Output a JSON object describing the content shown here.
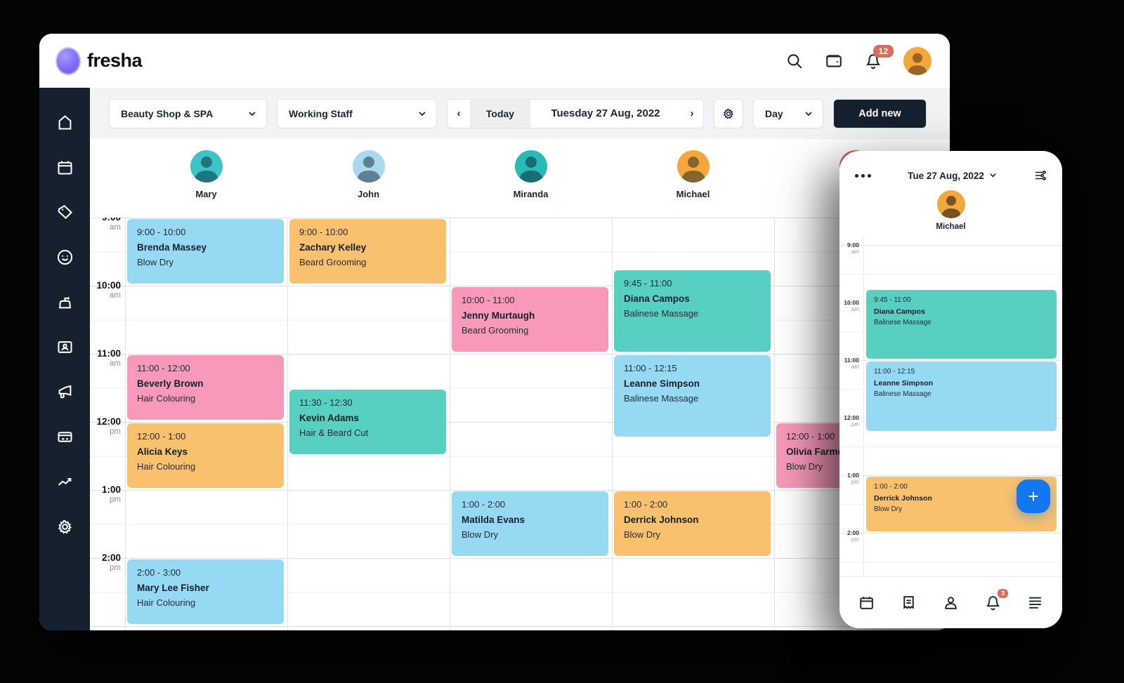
{
  "brand": {
    "logo_text": "fresha"
  },
  "header": {
    "icons": [
      "search-icon",
      "wallet-icon",
      "bell-icon",
      "user-avatar"
    ],
    "notification_count": "12"
  },
  "sidebar": {
    "icons": [
      "home",
      "calendar",
      "tag",
      "smiley",
      "products",
      "clients",
      "marketing",
      "card",
      "analytics",
      "settings"
    ]
  },
  "toolbar": {
    "location_selector": "Beauty Shop & SPA",
    "staff_filter": "Working Staff",
    "today_label": "Today",
    "date_label": "Tuesday 27 Aug, 2022",
    "view_selector": "Day",
    "add_new_label": "Add new"
  },
  "calendar": {
    "staff": [
      {
        "id": "mary",
        "name": "Mary",
        "avatar_bg": "#3ec3c9"
      },
      {
        "id": "john",
        "name": "John",
        "avatar_bg": "#a9d9f0"
      },
      {
        "id": "miranda",
        "name": "Miranda",
        "avatar_bg": "#29b9b6"
      },
      {
        "id": "michael",
        "name": "Michael",
        "avatar_bg": "#f3a73c"
      },
      {
        "id": "staff5",
        "name": "",
        "avatar_bg": "#e2574c"
      }
    ],
    "times": [
      {
        "hour": "9:00",
        "meridiem": "am"
      },
      {
        "hour": "10:00",
        "meridiem": "am"
      },
      {
        "hour": "11:00",
        "meridiem": "am"
      },
      {
        "hour": "12:00",
        "meridiem": "pm"
      },
      {
        "hour": "1:00",
        "meridiem": "pm"
      },
      {
        "hour": "2:00",
        "meridiem": "pm"
      }
    ],
    "palette": {
      "blue": "#95d9f3",
      "orange": "#f9c06e",
      "pink": "#f899ba",
      "teal": "#57d0c2"
    },
    "appointments": [
      {
        "staff": "mary",
        "time": "9:00 - 10:00",
        "client": "Brenda Massey",
        "service": "Blow Dry",
        "color": "blue"
      },
      {
        "staff": "mary",
        "time": "11:00 - 12:00",
        "client": "Beverly Brown",
        "service": "Hair Colouring",
        "color": "pink"
      },
      {
        "staff": "mary",
        "time": "12:00 - 1:00",
        "client": "Alicia Keys",
        "service": "Hair Colouring",
        "color": "orange"
      },
      {
        "staff": "mary",
        "time": "2:00 - 3:00",
        "client": "Mary Lee Fisher",
        "service": "Hair Colouring",
        "color": "blue"
      },
      {
        "staff": "john",
        "time": "9:00 - 10:00",
        "client": "Zachary Kelley",
        "service": "Beard Grooming",
        "color": "orange"
      },
      {
        "staff": "john",
        "time": "11:30 - 12:30",
        "client": "Kevin Adams",
        "service": "Hair & Beard Cut",
        "color": "teal"
      },
      {
        "staff": "miranda",
        "time": "10:00 - 11:00",
        "client": "Jenny Murtaugh",
        "service": "Beard Grooming",
        "color": "pink"
      },
      {
        "staff": "miranda",
        "time": "1:00 - 2:00",
        "client": "Matilda Evans",
        "service": "Blow Dry",
        "color": "blue"
      },
      {
        "staff": "michael",
        "time": "9:45 - 11:00",
        "client": "Diana Campos",
        "service": "Balinese Massage",
        "color": "teal"
      },
      {
        "staff": "michael",
        "time": "11:00 - 12:15",
        "client": "Leanne Simpson",
        "service": "Balinese Massage",
        "color": "blue"
      },
      {
        "staff": "michael",
        "time": "1:00 - 2:00",
        "client": "Derrick Johnson",
        "service": "Blow Dry",
        "color": "orange"
      },
      {
        "staff": "staff5",
        "time": "12:00 - 1:00",
        "client": "Olivia Farmer",
        "service": "Blow Dry",
        "color": "pink"
      }
    ]
  },
  "phone": {
    "menu_icon": "ellipsis-icon",
    "date_label": "Tue 27 Aug, 2022",
    "filter_icon": "sliders-icon",
    "staff_name": "Michael",
    "notification_count": "3",
    "add_button": "+",
    "nav_icons": [
      "calendar",
      "receipt",
      "profile",
      "notifications",
      "menu"
    ],
    "times": [
      {
        "hour": "9:00",
        "meridiem": "am"
      },
      {
        "hour": "10:00",
        "meridiem": "am"
      },
      {
        "hour": "11:00",
        "meridiem": "am"
      },
      {
        "hour": "12:00",
        "meridiem": "pm"
      },
      {
        "hour": "1:00",
        "meridiem": "pm"
      },
      {
        "hour": "2:00",
        "meridiem": "pm"
      }
    ],
    "appointments": [
      {
        "time": "9:45 - 11:00",
        "client": "Diana Campos",
        "service": "Balinese Massage",
        "color": "teal"
      },
      {
        "time": "11:00 - 12:15",
        "client": "Leanne Simpson",
        "service": "Balinese Massage",
        "color": "blue"
      },
      {
        "time": "1:00 - 2:00",
        "client": "Derrick Johnson",
        "service": "Blow Dry",
        "color": "orange"
      }
    ]
  }
}
